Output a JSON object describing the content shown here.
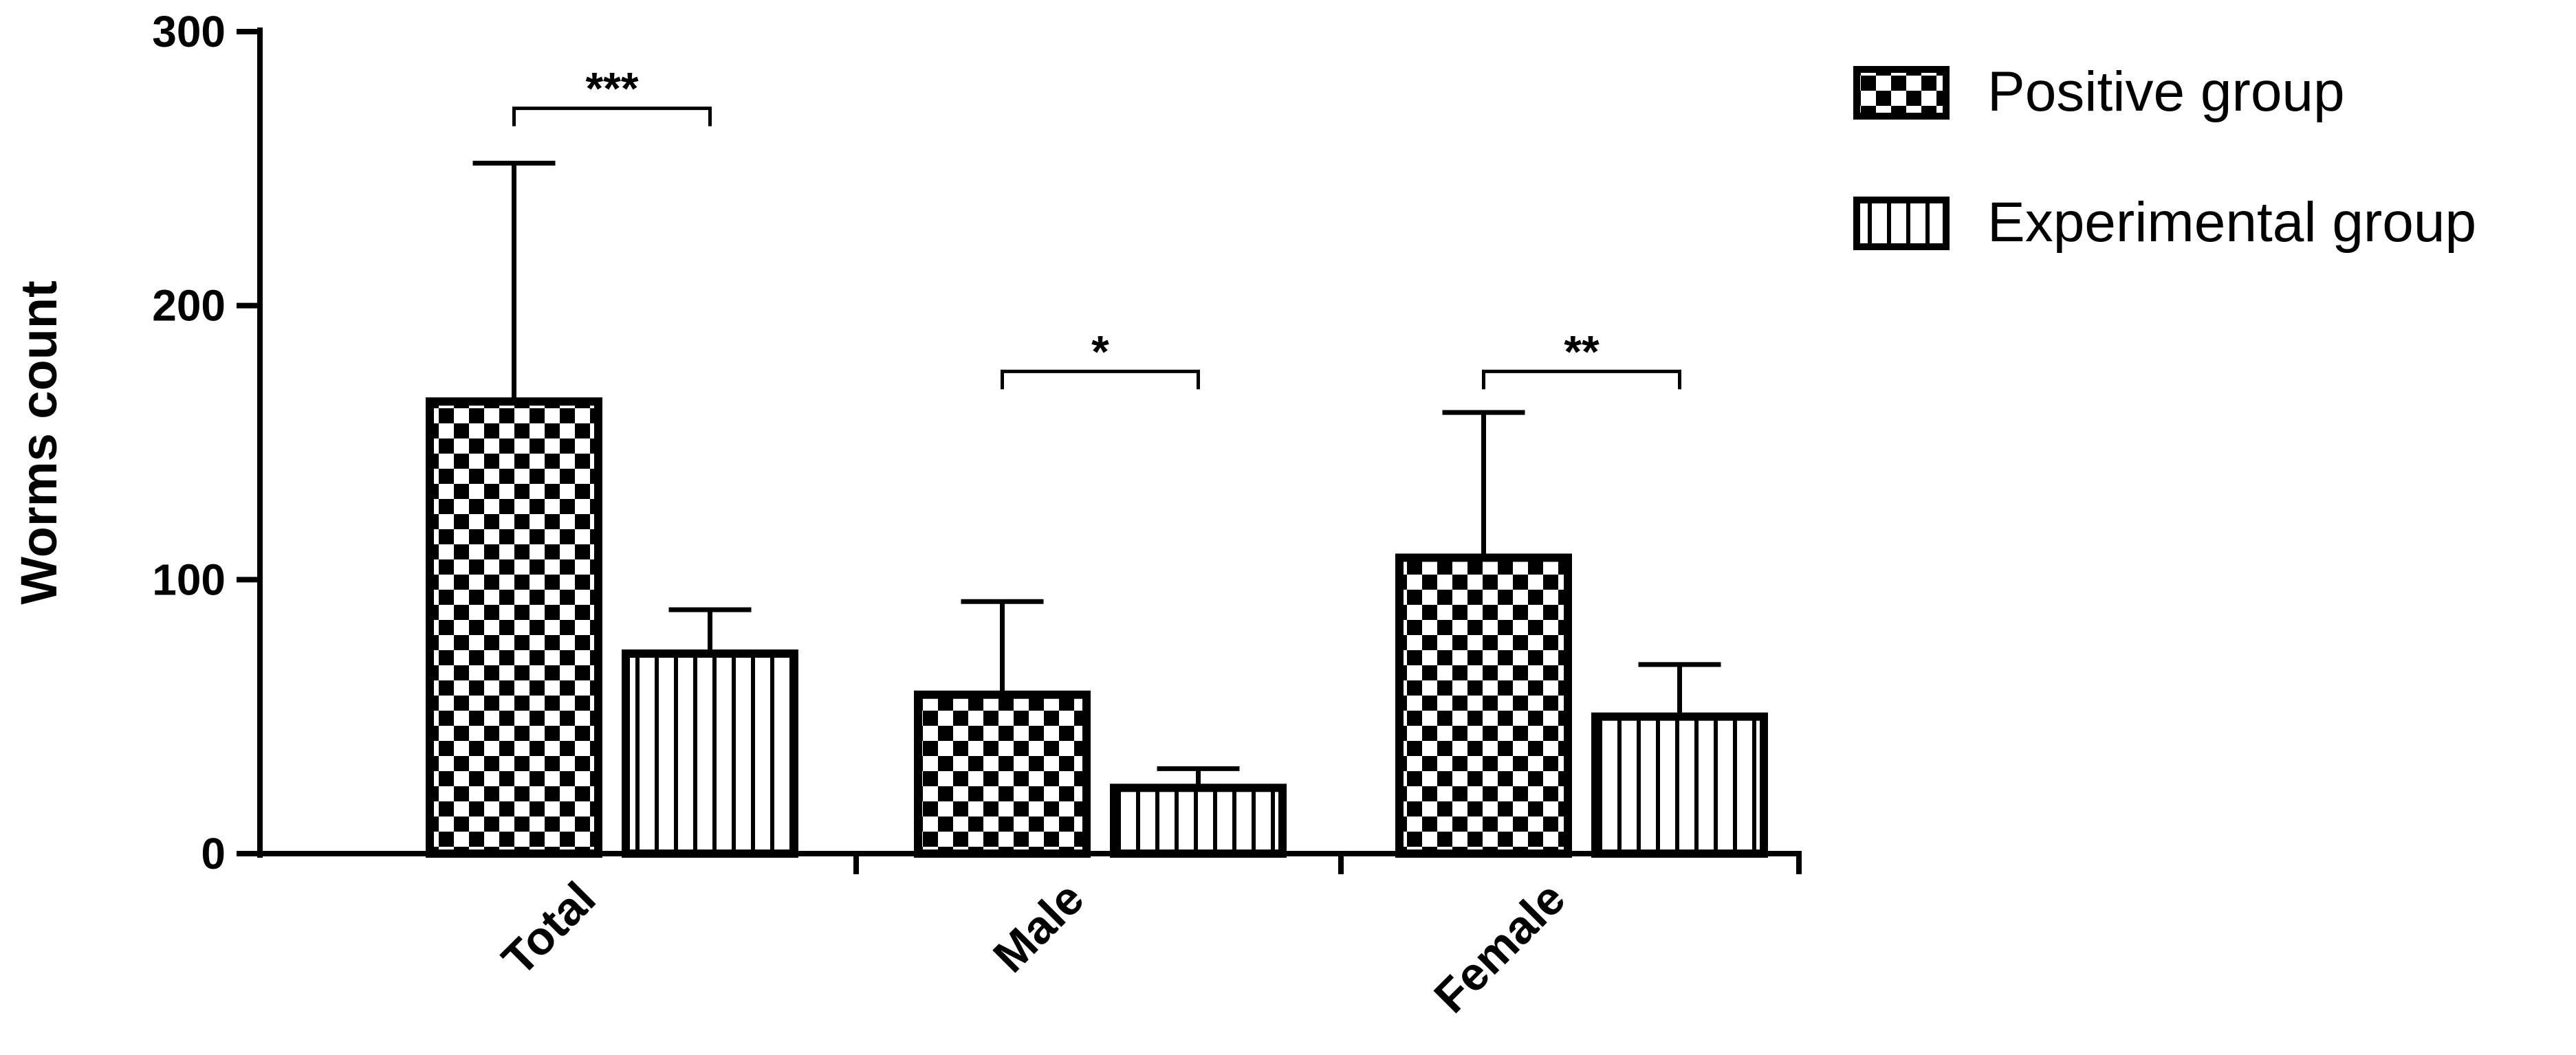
{
  "chart_data": {
    "type": "bar",
    "title": "",
    "xlabel": "",
    "ylabel": "Worms count",
    "ylim": [
      0,
      300
    ],
    "yticks": [
      0,
      100,
      200,
      300
    ],
    "grid": false,
    "legend_position": "top-right",
    "categories": [
      "Total",
      "Male",
      "Female"
    ],
    "series": [
      {
        "name": "Positive group",
        "pattern": "checkerboard",
        "values": [
          165,
          58,
          108
        ],
        "error_upper": [
          252,
          92,
          161
        ]
      },
      {
        "name": "Experimental group",
        "pattern": "vertical-stripes",
        "values": [
          73,
          24,
          50
        ],
        "error_upper": [
          89,
          31,
          69
        ]
      }
    ],
    "significance": [
      {
        "category": "Total",
        "label": "***",
        "bracket_y": 272
      },
      {
        "category": "Male",
        "label": "*",
        "bracket_y": 176
      },
      {
        "category": "Female",
        "label": "**",
        "bracket_y": 176
      }
    ],
    "colors": {
      "bar_stroke": "#000000",
      "fill": "#ffffff"
    }
  }
}
